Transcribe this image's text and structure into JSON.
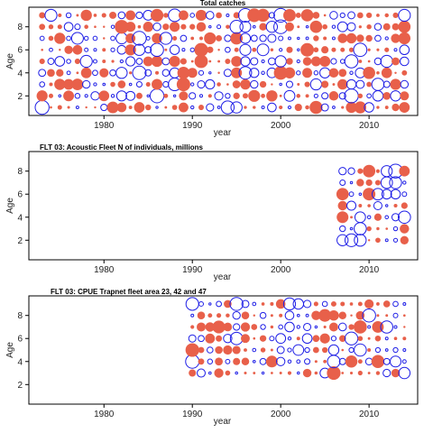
{
  "chart_data": [
    {
      "type": "scatter",
      "title": "Total catches",
      "xlabel": "year",
      "ylabel": "Age",
      "xlim": [
        1971.5,
        2015.5
      ],
      "ylim": [
        0.3,
        9.7
      ],
      "xticks": [
        1980,
        1990,
        2000,
        2010
      ],
      "yticks": [
        2,
        4,
        6,
        8
      ],
      "years": [
        1973,
        2014
      ],
      "ages": [
        1,
        9
      ],
      "colors": {
        "positive_residual": "#e8604a",
        "negative_residual": "#1e1ee6"
      },
      "grid": false,
      "legend": "none"
    },
    {
      "type": "scatter",
      "title": "FLT 03: Acoustic Fleet   N of individuals, millions",
      "xlabel": "year",
      "ylabel": "Age",
      "xlim": [
        1971.5,
        2015.5
      ],
      "ylim": [
        0.3,
        9.7
      ],
      "xticks": [
        1980,
        1990,
        2000,
        2010
      ],
      "yticks": [
        2,
        4,
        6,
        8
      ],
      "years": [
        2007,
        2014
      ],
      "ages": [
        2,
        8
      ],
      "colors": {
        "positive_residual": "#e8604a",
        "negative_residual": "#1e1ee6"
      },
      "grid": false,
      "legend": "none"
    },
    {
      "type": "scatter",
      "title": "FLT 03: CPUE Trapnet fleet area 23, 42 and 47",
      "xlabel": "year",
      "ylabel": "Age",
      "xlim": [
        1971.5,
        2015.5
      ],
      "ylim": [
        0.3,
        9.7
      ],
      "xticks": [
        1980,
        1990,
        2000,
        2010
      ],
      "yticks": [
        2,
        4,
        6,
        8
      ],
      "years": [
        1990,
        2014
      ],
      "ages": [
        3,
        9
      ],
      "colors": {
        "positive_residual": "#e8604a",
        "negative_residual": "#1e1ee6"
      },
      "grid": false,
      "legend": "none"
    }
  ]
}
